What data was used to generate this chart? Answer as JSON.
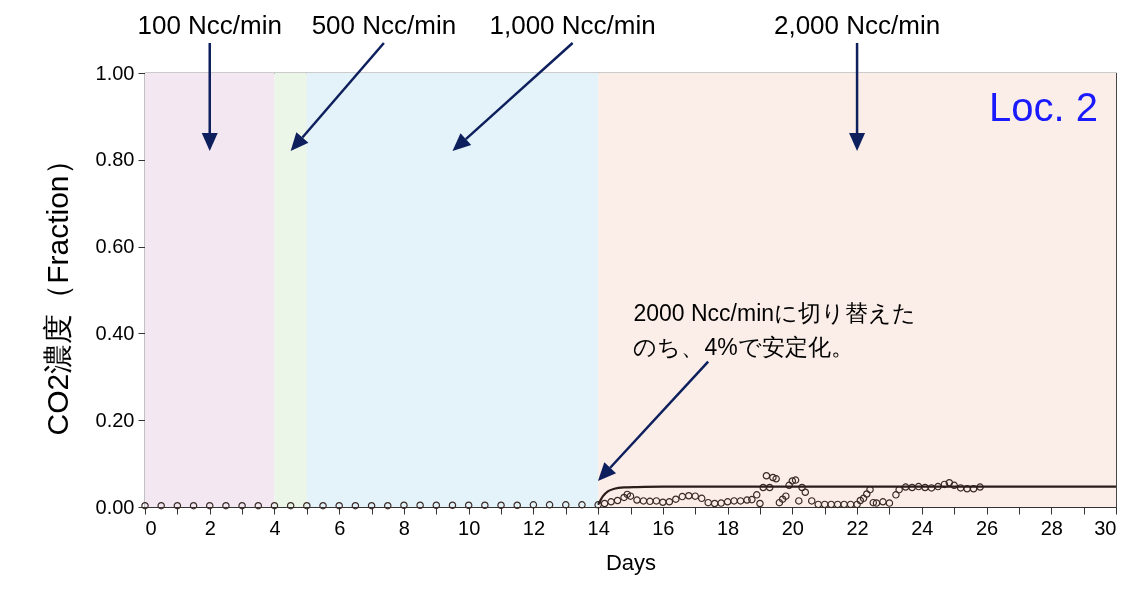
{
  "chart_data": {
    "type": "scatter",
    "xlabel": "Days",
    "ylabel": "CO2濃度（Fraction）",
    "xlim": [
      0,
      30
    ],
    "ylim": [
      0,
      1
    ],
    "xticks": [
      0,
      {
        "value": 1,
        "label": null
      },
      2,
      {
        "value": 3,
        "label": null
      },
      4,
      {
        "value": 5,
        "label": null
      },
      6,
      {
        "value": 7,
        "label": null
      },
      8,
      {
        "value": 9,
        "label": null
      },
      10,
      {
        "value": 11,
        "label": null
      },
      12,
      {
        "value": 13,
        "label": null
      },
      14,
      {
        "value": 15,
        "label": null
      },
      16,
      {
        "value": 17,
        "label": null
      },
      18,
      {
        "value": 19,
        "label": null
      },
      20,
      {
        "value": 21,
        "label": null
      },
      22,
      {
        "value": 23,
        "label": null
      },
      24,
      {
        "value": 25,
        "label": null
      },
      26,
      {
        "value": 27,
        "label": null
      },
      28,
      {
        "value": 29,
        "label": null
      },
      30
    ],
    "yticks": [
      {
        "value": 0,
        "label": "0.00"
      },
      {
        "value": 0.2,
        "label": "0.20"
      },
      {
        "value": 0.4,
        "label": "0.40"
      },
      {
        "value": 0.6,
        "label": "0.60"
      },
      {
        "value": 0.8,
        "label": "0.80"
      },
      {
        "value": 1,
        "label": "1.00"
      }
    ],
    "series": [
      {
        "type": "scatter",
        "marker": "circle",
        "color": "#3a2a26",
        "x": [
          0,
          0.5,
          1,
          1.5,
          2,
          2.5,
          3,
          3.5,
          4,
          4.5,
          5,
          5.5,
          6,
          6.5,
          7,
          7.5,
          8,
          8.5,
          9,
          9.5,
          10,
          10.5,
          11,
          11.5,
          12,
          12.5,
          13,
          13.5,
          14,
          14.2,
          14.4,
          14.6,
          14.8,
          14.9,
          15,
          15.2,
          15.4,
          15.6,
          15.8,
          16,
          16.2,
          16.4,
          16.6,
          16.8,
          17,
          17.2,
          17.4,
          17.6,
          17.8,
          18,
          18.2,
          18.4,
          18.6,
          18.75,
          18.9,
          19,
          19.1,
          19.2,
          19.3,
          19.4,
          19.5,
          19.6,
          19.7,
          19.8,
          19.9,
          20,
          20.1,
          20.2,
          20.3,
          20.4,
          20.6,
          20.8,
          21,
          21.2,
          21.4,
          21.6,
          21.8,
          22,
          22.1,
          22.2,
          22.3,
          22.4,
          22.5,
          22.6,
          22.8,
          23,
          23.2,
          23.3,
          23.5,
          23.7,
          23.9,
          24.1,
          24.3,
          24.5,
          24.7,
          24.85,
          25,
          25.2,
          25.4,
          25.6,
          25.8
        ],
        "values": [
          0.003,
          0.003,
          0.003,
          0.003,
          0.003,
          0.003,
          0.003,
          0.003,
          0.003,
          0.003,
          0.003,
          0.003,
          0.003,
          0.003,
          0.003,
          0.003,
          0.004,
          0.004,
          0.004,
          0.004,
          0.004,
          0.004,
          0.004,
          0.004,
          0.005,
          0.005,
          0.005,
          0.005,
          0.005,
          0.008,
          0.012,
          0.015,
          0.022,
          0.029,
          0.025,
          0.016,
          0.014,
          0.013,
          0.014,
          0.011,
          0.012,
          0.018,
          0.024,
          0.026,
          0.025,
          0.02,
          0.01,
          0.008,
          0.009,
          0.012,
          0.014,
          0.014,
          0.016,
          0.017,
          0.028,
          0.008,
          0.045,
          0.072,
          0.045,
          0.068,
          0.065,
          0.01,
          0.018,
          0.025,
          0.05,
          0.06,
          0.062,
          0.014,
          0.045,
          0.034,
          0.014,
          0.006,
          0.006,
          0.006,
          0.006,
          0.006,
          0.006,
          0.006,
          0.015,
          0.02,
          0.03,
          0.04,
          0.01,
          0.009,
          0.012,
          0.009,
          0.028,
          0.04,
          0.046,
          0.045,
          0.047,
          0.045,
          0.044,
          0.047,
          0.052,
          0.056,
          0.05,
          0.044,
          0.042,
          0.042,
          0.046
        ]
      },
      {
        "type": "line",
        "marker": "none",
        "color": "#2b1d1a",
        "x": [
          14,
          14.15,
          14.3,
          14.5,
          14.8,
          15.2,
          16,
          30
        ],
        "values": [
          0.005,
          0.025,
          0.036,
          0.042,
          0.045,
          0.046,
          0.047,
          0.047
        ]
      }
    ],
    "bands": [
      {
        "axis": "x",
        "from": 0,
        "to": 4,
        "label": "100 Ncc/min",
        "color": "#f3e7f2"
      },
      {
        "axis": "x",
        "from": 4,
        "to": 5,
        "label": "500 Ncc/min",
        "color": "#ebf5e8"
      },
      {
        "axis": "x",
        "from": 5,
        "to": 14,
        "label": "1,000 Ncc/min",
        "color": "#e4f2f9"
      },
      {
        "axis": "x",
        "from": 14,
        "to": 30,
        "label": "2,000 Ncc/min",
        "color": "#fbeee8"
      }
    ],
    "annotations": [
      "2000 Ncc/minに切り替えたのち、4%で安定化。",
      "Loc. 2"
    ]
  }
}
